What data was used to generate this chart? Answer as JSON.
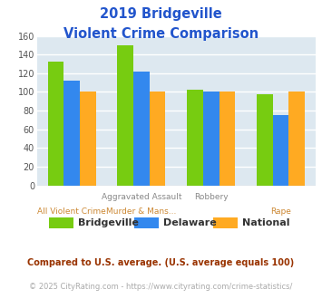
{
  "title_line1": "2019 Bridgeville",
  "title_line2": "Violent Crime Comparison",
  "series": {
    "Bridgeville": [
      132,
      150,
      102,
      98
    ],
    "Delaware": [
      112,
      122,
      100,
      75
    ],
    "National": [
      100,
      100,
      100,
      100
    ]
  },
  "colors": {
    "Bridgeville": "#77cc11",
    "Delaware": "#3388ee",
    "National": "#ffaa22"
  },
  "cat_label_top": [
    "",
    "Aggravated Assault",
    "Robbery",
    ""
  ],
  "cat_label_bot": [
    "All Violent Crime",
    "Murder & Mans...",
    "",
    "Rape"
  ],
  "ylim": [
    0,
    160
  ],
  "yticks": [
    0,
    20,
    40,
    60,
    80,
    100,
    120,
    140,
    160
  ],
  "title_color": "#2255cc",
  "label_top_color": "#888888",
  "label_bot_color": "#cc8833",
  "bg_color": "#dde8f0",
  "fig_bg": "#ffffff",
  "footnote1": "Compared to U.S. average. (U.S. average equals 100)",
  "footnote2": "© 2025 CityRating.com - https://www.cityrating.com/crime-statistics/",
  "footnote1_color": "#993300",
  "footnote2_color": "#aaaaaa",
  "url_color": "#3388cc"
}
